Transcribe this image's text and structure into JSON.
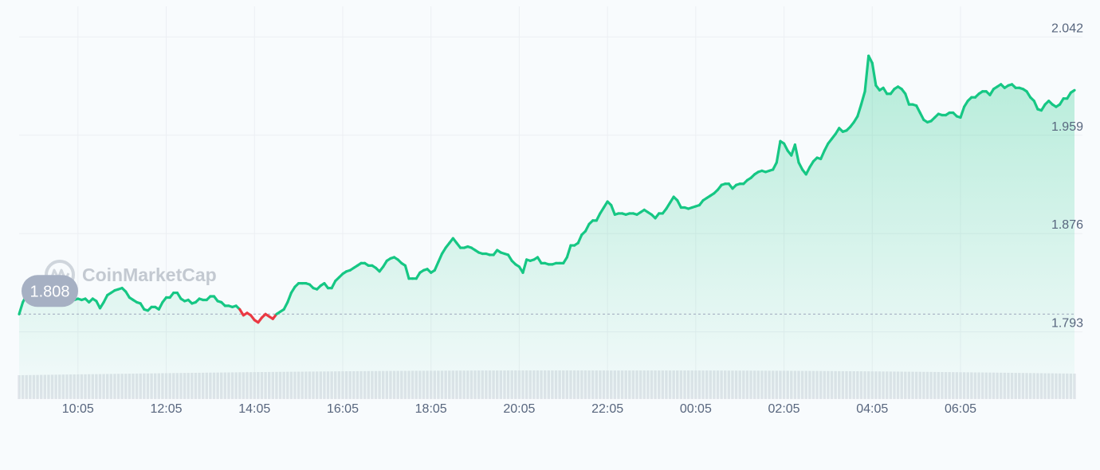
{
  "chart_data": {
    "type": "area",
    "watermark": "CoinMarketCap",
    "open_value_label": "1.808",
    "reference_value": 1.808,
    "y_ticks": [
      "2.042",
      "1.959",
      "1.876",
      "1.793"
    ],
    "ylim": [
      1.784,
      2.053
    ],
    "x_ticks": [
      "10:05",
      "12:05",
      "14:05",
      "16:05",
      "18:05",
      "20:05",
      "22:05",
      "00:05",
      "02:05",
      "04:05",
      "06:05"
    ],
    "x_tick_index": [
      16,
      40,
      64,
      88,
      112,
      136,
      160,
      184,
      208,
      232,
      256
    ],
    "grid": true,
    "colors": {
      "up": "#16c784",
      "down": "#ea3943",
      "grid": "#eceff3",
      "ref_line": "#a6b0c3",
      "label_bg": "#a6b0c3",
      "volume": "#e0e4ea"
    },
    "series": [
      {
        "values": [
          1.808,
          1.818,
          1.824,
          1.826,
          1.827,
          1.827,
          1.828,
          1.831,
          1.834,
          1.832,
          1.83,
          1.825,
          1.825,
          1.828,
          1.826,
          1.82,
          1.821,
          1.82,
          1.821,
          1.818,
          1.821,
          1.819,
          1.813,
          1.818,
          1.824,
          1.826,
          1.828,
          1.829,
          1.83,
          1.827,
          1.822,
          1.82,
          1.818,
          1.817,
          1.812,
          1.811,
          1.814,
          1.814,
          1.812,
          1.818,
          1.822,
          1.822,
          1.826,
          1.826,
          1.821,
          1.819,
          1.82,
          1.817,
          1.818,
          1.821,
          1.82,
          1.82,
          1.823,
          1.823,
          1.819,
          1.818,
          1.815,
          1.815,
          1.814,
          1.815,
          1.812,
          1.807,
          1.809,
          1.807,
          1.803,
          1.801,
          1.805,
          1.808,
          1.806,
          1.804,
          1.808,
          1.81,
          1.812,
          1.818,
          1.826,
          1.831,
          1.834,
          1.834,
          1.834,
          1.833,
          1.83,
          1.829,
          1.832,
          1.834,
          1.83,
          1.83,
          1.836,
          1.839,
          1.842,
          1.844,
          1.845,
          1.847,
          1.849,
          1.851,
          1.851,
          1.849,
          1.849,
          1.847,
          1.844,
          1.848,
          1.853,
          1.855,
          1.856,
          1.854,
          1.851,
          1.849,
          1.838,
          1.838,
          1.838,
          1.843,
          1.845,
          1.846,
          1.843,
          1.845,
          1.852,
          1.859,
          1.864,
          1.868,
          1.872,
          1.868,
          1.864,
          1.864,
          1.865,
          1.864,
          1.862,
          1.86,
          1.859,
          1.859,
          1.858,
          1.858,
          1.862,
          1.86,
          1.859,
          1.858,
          1.853,
          1.85,
          1.848,
          1.843,
          1.854,
          1.853,
          1.854,
          1.856,
          1.851,
          1.851,
          1.85,
          1.85,
          1.851,
          1.851,
          1.851,
          1.856,
          1.866,
          1.866,
          1.868,
          1.875,
          1.878,
          1.884,
          1.887,
          1.887,
          1.893,
          1.898,
          1.903,
          1.9,
          1.892,
          1.893,
          1.893,
          1.892,
          1.893,
          1.893,
          1.892,
          1.894,
          1.896,
          1.894,
          1.892,
          1.889,
          1.893,
          1.893,
          1.897,
          1.902,
          1.907,
          1.904,
          1.898,
          1.898,
          1.897,
          1.898,
          1.899,
          1.9,
          1.904,
          1.906,
          1.908,
          1.91,
          1.913,
          1.917,
          1.918,
          1.918,
          1.914,
          1.917,
          1.918,
          1.918,
          1.921,
          1.923,
          1.926,
          1.928,
          1.929,
          1.928,
          1.929,
          1.93,
          1.936,
          1.954,
          1.952,
          1.946,
          1.942,
          1.951,
          1.936,
          1.93,
          1.926,
          1.932,
          1.937,
          1.94,
          1.939,
          1.946,
          1.952,
          1.956,
          1.96,
          1.965,
          1.962,
          1.963,
          1.966,
          1.97,
          1.975,
          1.985,
          1.996,
          2.026,
          2.02,
          2.001,
          1.997,
          1.999,
          1.994,
          1.994,
          1.998,
          2.0,
          1.998,
          1.994,
          1.985,
          1.985,
          1.984,
          1.978,
          1.972,
          1.97,
          1.971,
          1.974,
          1.977,
          1.976,
          1.976,
          1.978,
          1.978,
          1.975,
          1.974,
          1.983,
          1.988,
          1.991,
          1.991,
          1.994,
          1.996,
          1.996,
          1.993,
          1.998,
          2.0,
          2.002,
          1.999,
          2.001,
          2.002,
          1.999,
          1.999,
          1.998,
          1.996,
          1.991,
          1.988,
          1.981,
          1.98,
          1.985,
          1.988,
          1.985,
          1.983,
          1.985,
          1.99,
          1.99,
          1.995,
          1.997
        ]
      }
    ]
  }
}
